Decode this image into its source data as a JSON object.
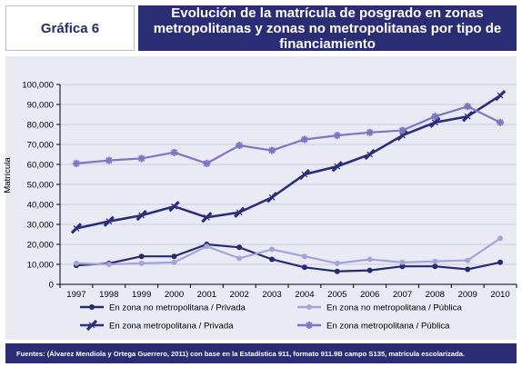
{
  "header": {
    "chart_label": "Gráfica 6",
    "title": "Evolución de la matrícula de posgrado en zonas metropolitanas y zonas no metropolitanas por tipo de financiamiento"
  },
  "footer": {
    "source": "Fuentes: (Álvarez Mendiola y Ortega Guerrero, 2011) con base en la Estadística 911, formato 911.9B campo S135, matrícula escolarizada."
  },
  "chart_data": {
    "type": "line",
    "title": "Evolución de la matrícula de posgrado en zonas metropolitanas y zonas no metropolitanas por tipo de financiamiento",
    "ylabel": "Matrícula",
    "xlabel": "",
    "x": [
      "1997",
      "1998",
      "1999",
      "2000",
      "2001",
      "2002",
      "2003",
      "2004",
      "2005",
      "2006",
      "2007",
      "2008",
      "2009",
      "2010"
    ],
    "ylim": [
      0,
      100000
    ],
    "y_ticks": [
      "0",
      "10,000",
      "20,000",
      "30,000",
      "40,000",
      "50,000",
      "60,000",
      "70,000",
      "80,000",
      "90,000",
      "100,000"
    ],
    "grid": "horizontal",
    "legend_position": "bottom",
    "series": [
      {
        "name": "En zona no metropolitana / Privada",
        "color": "#262a6e",
        "marker": "circle",
        "values": [
          9500,
          10500,
          14000,
          14000,
          20000,
          18500,
          12500,
          8500,
          6500,
          7000,
          9000,
          9000,
          7500,
          11000
        ]
      },
      {
        "name": "En zona no metropolitana / Pública",
        "color": "#a3a5d6",
        "marker": "circle",
        "values": [
          10500,
          10000,
          10500,
          11000,
          19000,
          13000,
          17500,
          14000,
          10500,
          12500,
          11000,
          11500,
          12000,
          23000
        ]
      },
      {
        "name": "En zona metropolitana / Privada",
        "color": "#2b2e77",
        "marker": "cross",
        "values": [
          28000,
          31500,
          34500,
          39000,
          33500,
          36000,
          43500,
          55000,
          59000,
          65000,
          74500,
          81000,
          84000,
          94500
        ]
      },
      {
        "name": "En zona metropolitana / Pública",
        "color": "#7b77c0",
        "marker": "star",
        "values": [
          60500,
          62000,
          63000,
          66000,
          60500,
          69500,
          67000,
          72500,
          74500,
          76000,
          77000,
          84000,
          89000,
          81000
        ]
      }
    ]
  }
}
